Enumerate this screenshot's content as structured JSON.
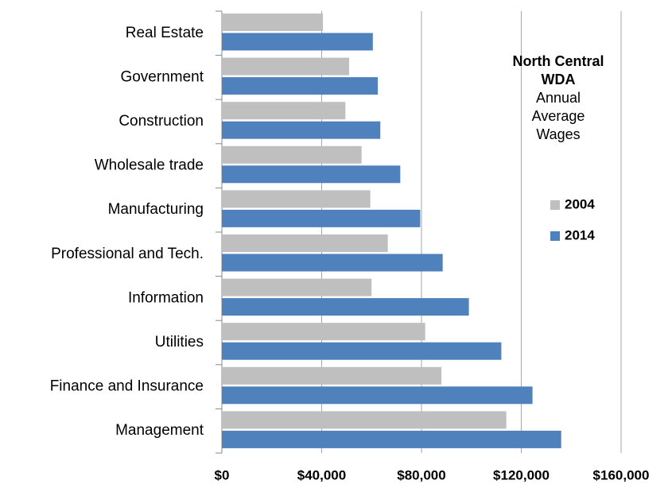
{
  "chart_data": {
    "type": "bar",
    "orientation": "horizontal",
    "title": [
      "North Central",
      "WDA"
    ],
    "subtitle": [
      "Annual",
      "Average",
      "Wages"
    ],
    "categories": [
      "Real Estate",
      "Government",
      "Construction",
      "Wholesale trade",
      "Manufacturing",
      "Professional and Tech.",
      "Information",
      "Utilities",
      "Finance and Insurance",
      "Management"
    ],
    "series": [
      {
        "name": "2004",
        "color": "#bfbfbf",
        "values": [
          40500,
          51000,
          49500,
          56000,
          59500,
          66500,
          60000,
          81500,
          88000,
          114000
        ]
      },
      {
        "name": "2014",
        "color": "#4f81bd",
        "values": [
          60500,
          62500,
          63500,
          71500,
          79500,
          88500,
          99000,
          112000,
          124500,
          136000
        ]
      }
    ],
    "xlim": [
      0,
      160000
    ],
    "xticks": [
      {
        "value": 0,
        "label": "$0"
      },
      {
        "value": 40000,
        "label": "$40,000"
      },
      {
        "value": 80000,
        "label": "$80,000"
      },
      {
        "value": 120000,
        "label": "$120,000"
      },
      {
        "value": 160000,
        "label": "$160,000"
      }
    ],
    "grid": true
  }
}
